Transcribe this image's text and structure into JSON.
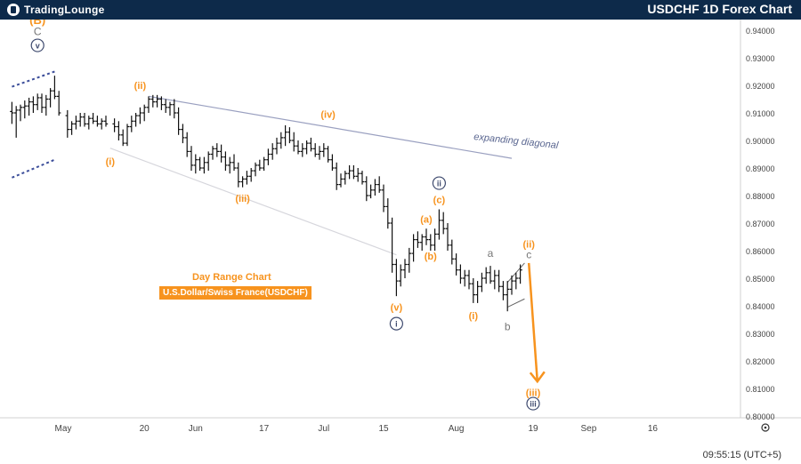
{
  "header": {
    "logo_text": "TradingLounge",
    "title": "USDCHF 1D Forex Chart"
  },
  "annotations": {
    "range_title": "Day Range Chart",
    "pair_label": "U.S.Dollar/Swiss France(USDCHF)",
    "channel_label": "expanding diagonal"
  },
  "footer": {
    "time": "09:55:15 (UTC+5)"
  },
  "colors": {
    "orange": "#f7931e",
    "navy": "#0d2a4a",
    "channel": "#9aa0c0",
    "blue_dash": "#3c4e9a",
    "gray": "#888888"
  },
  "chart_data": {
    "type": "ohlc",
    "title": "USDCHF 1D Forex Chart",
    "y_ticks": [
      "0.94000",
      "0.93000",
      "0.92000",
      "0.91000",
      "0.90000",
      "0.89000",
      "0.88000",
      "0.87000",
      "0.86000",
      "0.85000",
      "0.84000",
      "0.83000",
      "0.82000",
      "0.81000",
      "0.80000"
    ],
    "x_ticks": [
      {
        "label": "May",
        "day": 0
      },
      {
        "label": "20",
        "day": 19
      },
      {
        "label": "Jun",
        "day": 31
      },
      {
        "label": "17",
        "day": 47
      },
      {
        "label": "Jul",
        "day": 61
      },
      {
        "label": "15",
        "day": 75
      },
      {
        "label": "Aug",
        "day": 92
      },
      {
        "label": "19",
        "day": 110
      },
      {
        "label": "Sep",
        "day": 123
      },
      {
        "label": "16",
        "day": 138
      }
    ],
    "ylim": [
      0.8,
      0.945
    ],
    "bars": [
      {
        "d": -12,
        "o": 0.9105,
        "h": 0.914,
        "l": 0.906,
        "c": 0.91
      },
      {
        "d": -11,
        "o": 0.91,
        "h": 0.9125,
        "l": 0.901,
        "c": 0.911
      },
      {
        "d": -10,
        "o": 0.911,
        "h": 0.913,
        "l": 0.907,
        "c": 0.912
      },
      {
        "d": -9,
        "o": 0.912,
        "h": 0.9145,
        "l": 0.908,
        "c": 0.9125
      },
      {
        "d": -8,
        "o": 0.9125,
        "h": 0.9155,
        "l": 0.909,
        "c": 0.914
      },
      {
        "d": -7,
        "o": 0.914,
        "h": 0.916,
        "l": 0.91,
        "c": 0.913
      },
      {
        "d": -6,
        "o": 0.913,
        "h": 0.917,
        "l": 0.911,
        "c": 0.9155
      },
      {
        "d": -5,
        "o": 0.9155,
        "h": 0.917,
        "l": 0.91,
        "c": 0.912
      },
      {
        "d": -4,
        "o": 0.912,
        "h": 0.9165,
        "l": 0.909,
        "c": 0.915
      },
      {
        "d": -3,
        "o": 0.915,
        "h": 0.919,
        "l": 0.912,
        "c": 0.918
      },
      {
        "d": -2,
        "o": 0.918,
        "h": 0.9235,
        "l": 0.915,
        "c": 0.916
      },
      {
        "d": -1,
        "o": 0.916,
        "h": 0.918,
        "l": 0.909,
        "c": 0.91
      },
      {
        "d": 1,
        "o": 0.909,
        "h": 0.911,
        "l": 0.901,
        "c": 0.904
      },
      {
        "d": 2,
        "o": 0.904,
        "h": 0.907,
        "l": 0.902,
        "c": 0.906
      },
      {
        "d": 3,
        "o": 0.906,
        "h": 0.909,
        "l": 0.904,
        "c": 0.907
      },
      {
        "d": 4,
        "o": 0.907,
        "h": 0.91,
        "l": 0.905,
        "c": 0.9085
      },
      {
        "d": 5,
        "o": 0.9085,
        "h": 0.91,
        "l": 0.905,
        "c": 0.906
      },
      {
        "d": 6,
        "o": 0.906,
        "h": 0.909,
        "l": 0.904,
        "c": 0.908
      },
      {
        "d": 7,
        "o": 0.908,
        "h": 0.91,
        "l": 0.906,
        "c": 0.907
      },
      {
        "d": 8,
        "o": 0.907,
        "h": 0.909,
        "l": 0.905,
        "c": 0.906
      },
      {
        "d": 9,
        "o": 0.906,
        "h": 0.908,
        "l": 0.904,
        "c": 0.907
      },
      {
        "d": 10,
        "o": 0.907,
        "h": 0.909,
        "l": 0.905,
        "c": 0.906
      },
      {
        "d": 12,
        "o": 0.906,
        "h": 0.908,
        "l": 0.903,
        "c": 0.905
      },
      {
        "d": 13,
        "o": 0.905,
        "h": 0.907,
        "l": 0.9,
        "c": 0.902
      },
      {
        "d": 14,
        "o": 0.902,
        "h": 0.904,
        "l": 0.898,
        "c": 0.899
      },
      {
        "d": 15,
        "o": 0.899,
        "h": 0.906,
        "l": 0.898,
        "c": 0.905
      },
      {
        "d": 16,
        "o": 0.905,
        "h": 0.909,
        "l": 0.903,
        "c": 0.907
      },
      {
        "d": 17,
        "o": 0.907,
        "h": 0.91,
        "l": 0.905,
        "c": 0.909
      },
      {
        "d": 18,
        "o": 0.909,
        "h": 0.912,
        "l": 0.906,
        "c": 0.91
      },
      {
        "d": 19,
        "o": 0.91,
        "h": 0.913,
        "l": 0.907,
        "c": 0.912
      },
      {
        "d": 20,
        "o": 0.912,
        "h": 0.916,
        "l": 0.91,
        "c": 0.915
      },
      {
        "d": 21,
        "o": 0.915,
        "h": 0.9165,
        "l": 0.912,
        "c": 0.914
      },
      {
        "d": 22,
        "o": 0.914,
        "h": 0.9165,
        "l": 0.912,
        "c": 0.915
      },
      {
        "d": 23,
        "o": 0.915,
        "h": 0.916,
        "l": 0.911,
        "c": 0.913
      },
      {
        "d": 24,
        "o": 0.913,
        "h": 0.915,
        "l": 0.91,
        "c": 0.912
      },
      {
        "d": 25,
        "o": 0.912,
        "h": 0.914,
        "l": 0.909,
        "c": 0.913
      },
      {
        "d": 26,
        "o": 0.913,
        "h": 0.915,
        "l": 0.908,
        "c": 0.91
      },
      {
        "d": 27,
        "o": 0.91,
        "h": 0.912,
        "l": 0.902,
        "c": 0.904
      },
      {
        "d": 28,
        "o": 0.904,
        "h": 0.906,
        "l": 0.899,
        "c": 0.901
      },
      {
        "d": 29,
        "o": 0.901,
        "h": 0.903,
        "l": 0.894,
        "c": 0.896
      },
      {
        "d": 30,
        "o": 0.896,
        "h": 0.898,
        "l": 0.889,
        "c": 0.891
      },
      {
        "d": 31,
        "o": 0.891,
        "h": 0.895,
        "l": 0.888,
        "c": 0.893
      },
      {
        "d": 32,
        "o": 0.893,
        "h": 0.894,
        "l": 0.889,
        "c": 0.89
      },
      {
        "d": 33,
        "o": 0.89,
        "h": 0.894,
        "l": 0.888,
        "c": 0.892
      },
      {
        "d": 34,
        "o": 0.892,
        "h": 0.896,
        "l": 0.889,
        "c": 0.895
      },
      {
        "d": 35,
        "o": 0.895,
        "h": 0.898,
        "l": 0.893,
        "c": 0.897
      },
      {
        "d": 36,
        "o": 0.897,
        "h": 0.899,
        "l": 0.894,
        "c": 0.896
      },
      {
        "d": 37,
        "o": 0.896,
        "h": 0.8985,
        "l": 0.892,
        "c": 0.894
      },
      {
        "d": 38,
        "o": 0.894,
        "h": 0.896,
        "l": 0.889,
        "c": 0.891
      },
      {
        "d": 39,
        "o": 0.891,
        "h": 0.894,
        "l": 0.888,
        "c": 0.892
      },
      {
        "d": 40,
        "o": 0.892,
        "h": 0.895,
        "l": 0.889,
        "c": 0.89
      },
      {
        "d": 41,
        "o": 0.89,
        "h": 0.892,
        "l": 0.883,
        "c": 0.885
      },
      {
        "d": 42,
        "o": 0.885,
        "h": 0.887,
        "l": 0.883,
        "c": 0.886
      },
      {
        "d": 43,
        "o": 0.886,
        "h": 0.889,
        "l": 0.884,
        "c": 0.887
      },
      {
        "d": 44,
        "o": 0.887,
        "h": 0.89,
        "l": 0.885,
        "c": 0.889
      },
      {
        "d": 45,
        "o": 0.889,
        "h": 0.892,
        "l": 0.887,
        "c": 0.891
      },
      {
        "d": 46,
        "o": 0.891,
        "h": 0.893,
        "l": 0.889,
        "c": 0.89
      },
      {
        "d": 47,
        "o": 0.89,
        "h": 0.894,
        "l": 0.889,
        "c": 0.893
      },
      {
        "d": 48,
        "o": 0.893,
        "h": 0.897,
        "l": 0.891,
        "c": 0.895
      },
      {
        "d": 49,
        "o": 0.895,
        "h": 0.899,
        "l": 0.893,
        "c": 0.897
      },
      {
        "d": 50,
        "o": 0.897,
        "h": 0.901,
        "l": 0.895,
        "c": 0.899
      },
      {
        "d": 51,
        "o": 0.899,
        "h": 0.903,
        "l": 0.897,
        "c": 0.901
      },
      {
        "d": 52,
        "o": 0.901,
        "h": 0.9055,
        "l": 0.898,
        "c": 0.903
      },
      {
        "d": 53,
        "o": 0.903,
        "h": 0.9048,
        "l": 0.899,
        "c": 0.9
      },
      {
        "d": 54,
        "o": 0.9,
        "h": 0.903,
        "l": 0.896,
        "c": 0.898
      },
      {
        "d": 55,
        "o": 0.898,
        "h": 0.9,
        "l": 0.895,
        "c": 0.896
      },
      {
        "d": 56,
        "o": 0.896,
        "h": 0.899,
        "l": 0.894,
        "c": 0.897
      },
      {
        "d": 57,
        "o": 0.897,
        "h": 0.9,
        "l": 0.895,
        "c": 0.899
      },
      {
        "d": 58,
        "o": 0.899,
        "h": 0.901,
        "l": 0.896,
        "c": 0.897
      },
      {
        "d": 59,
        "o": 0.897,
        "h": 0.899,
        "l": 0.894,
        "c": 0.895
      },
      {
        "d": 60,
        "o": 0.895,
        "h": 0.898,
        "l": 0.893,
        "c": 0.896
      },
      {
        "d": 61,
        "o": 0.896,
        "h": 0.899,
        "l": 0.894,
        "c": 0.897
      },
      {
        "d": 62,
        "o": 0.897,
        "h": 0.898,
        "l": 0.892,
        "c": 0.893
      },
      {
        "d": 63,
        "o": 0.893,
        "h": 0.895,
        "l": 0.889,
        "c": 0.89
      },
      {
        "d": 64,
        "o": 0.89,
        "h": 0.892,
        "l": 0.882,
        "c": 0.884
      },
      {
        "d": 65,
        "o": 0.884,
        "h": 0.888,
        "l": 0.883,
        "c": 0.886
      },
      {
        "d": 66,
        "o": 0.886,
        "h": 0.889,
        "l": 0.884,
        "c": 0.888
      },
      {
        "d": 67,
        "o": 0.888,
        "h": 0.891,
        "l": 0.886,
        "c": 0.889
      },
      {
        "d": 68,
        "o": 0.889,
        "h": 0.891,
        "l": 0.886,
        "c": 0.887
      },
      {
        "d": 69,
        "o": 0.887,
        "h": 0.89,
        "l": 0.885,
        "c": 0.888
      },
      {
        "d": 70,
        "o": 0.888,
        "h": 0.889,
        "l": 0.884,
        "c": 0.885
      },
      {
        "d": 71,
        "o": 0.885,
        "h": 0.887,
        "l": 0.878,
        "c": 0.88
      },
      {
        "d": 72,
        "o": 0.88,
        "h": 0.884,
        "l": 0.879,
        "c": 0.882
      },
      {
        "d": 73,
        "o": 0.882,
        "h": 0.886,
        "l": 0.88,
        "c": 0.884
      },
      {
        "d": 74,
        "o": 0.884,
        "h": 0.887,
        "l": 0.881,
        "c": 0.882
      },
      {
        "d": 75,
        "o": 0.882,
        "h": 0.884,
        "l": 0.874,
        "c": 0.876
      },
      {
        "d": 76,
        "o": 0.876,
        "h": 0.879,
        "l": 0.868,
        "c": 0.87
      },
      {
        "d": 77,
        "o": 0.87,
        "h": 0.872,
        "l": 0.852,
        "c": 0.855
      },
      {
        "d": 78,
        "o": 0.855,
        "h": 0.857,
        "l": 0.8435,
        "c": 0.849
      },
      {
        "d": 79,
        "o": 0.849,
        "h": 0.855,
        "l": 0.847,
        "c": 0.853
      },
      {
        "d": 80,
        "o": 0.853,
        "h": 0.857,
        "l": 0.85,
        "c": 0.855
      },
      {
        "d": 81,
        "o": 0.855,
        "h": 0.861,
        "l": 0.852,
        "c": 0.859
      },
      {
        "d": 82,
        "o": 0.859,
        "h": 0.866,
        "l": 0.856,
        "c": 0.864
      },
      {
        "d": 83,
        "o": 0.864,
        "h": 0.867,
        "l": 0.861,
        "c": 0.863
      },
      {
        "d": 84,
        "o": 0.863,
        "h": 0.866,
        "l": 0.86,
        "c": 0.865
      },
      {
        "d": 85,
        "o": 0.865,
        "h": 0.868,
        "l": 0.862,
        "c": 0.864
      },
      {
        "d": 86,
        "o": 0.864,
        "h": 0.866,
        "l": 0.86,
        "c": 0.862
      },
      {
        "d": 87,
        "o": 0.862,
        "h": 0.868,
        "l": 0.86,
        "c": 0.866
      },
      {
        "d": 88,
        "o": 0.866,
        "h": 0.875,
        "l": 0.864,
        "c": 0.871
      },
      {
        "d": 89,
        "o": 0.871,
        "h": 0.874,
        "l": 0.866,
        "c": 0.868
      },
      {
        "d": 90,
        "o": 0.868,
        "h": 0.87,
        "l": 0.86,
        "c": 0.862
      },
      {
        "d": 91,
        "o": 0.862,
        "h": 0.864,
        "l": 0.855,
        "c": 0.857
      },
      {
        "d": 92,
        "o": 0.857,
        "h": 0.859,
        "l": 0.851,
        "c": 0.853
      },
      {
        "d": 93,
        "o": 0.853,
        "h": 0.855,
        "l": 0.848,
        "c": 0.85
      },
      {
        "d": 94,
        "o": 0.85,
        "h": 0.853,
        "l": 0.847,
        "c": 0.851
      },
      {
        "d": 95,
        "o": 0.851,
        "h": 0.853,
        "l": 0.846,
        "c": 0.848
      },
      {
        "d": 96,
        "o": 0.848,
        "h": 0.85,
        "l": 0.841,
        "c": 0.844
      },
      {
        "d": 97,
        "o": 0.844,
        "h": 0.849,
        "l": 0.841,
        "c": 0.847
      },
      {
        "d": 98,
        "o": 0.847,
        "h": 0.852,
        "l": 0.845,
        "c": 0.85
      },
      {
        "d": 99,
        "o": 0.85,
        "h": 0.854,
        "l": 0.848,
        "c": 0.852
      },
      {
        "d": 100,
        "o": 0.852,
        "h": 0.8545,
        "l": 0.848,
        "c": 0.849
      },
      {
        "d": 101,
        "o": 0.849,
        "h": 0.853,
        "l": 0.846,
        "c": 0.851
      },
      {
        "d": 102,
        "o": 0.851,
        "h": 0.853,
        "l": 0.845,
        "c": 0.847
      },
      {
        "d": 103,
        "o": 0.847,
        "h": 0.849,
        "l": 0.842,
        "c": 0.844
      },
      {
        "d": 104,
        "o": 0.844,
        "h": 0.849,
        "l": 0.838,
        "c": 0.846
      },
      {
        "d": 105,
        "o": 0.846,
        "h": 0.851,
        "l": 0.844,
        "c": 0.849
      },
      {
        "d": 106,
        "o": 0.849,
        "h": 0.852,
        "l": 0.846,
        "c": 0.85
      },
      {
        "d": 107,
        "o": 0.85,
        "h": 0.855,
        "l": 0.848,
        "c": 0.853
      }
    ],
    "wave_labels": [
      {
        "text": "(B)",
        "style": "orange-bold",
        "d": -6,
        "price": 0.9435
      },
      {
        "text": "C",
        "style": "gray",
        "d": -6,
        "price": 0.9395
      },
      {
        "text": "v",
        "style": "circle-navy",
        "d": -6,
        "price": 0.9345
      },
      {
        "text": "(ii)",
        "style": "orange",
        "d": 18,
        "price": 0.92
      },
      {
        "text": "(i)",
        "style": "orange",
        "d": 11,
        "price": 0.8925
      },
      {
        "text": "(iii)",
        "style": "orange",
        "d": 42,
        "price": 0.879
      },
      {
        "text": "(iv)",
        "style": "orange",
        "d": 62,
        "price": 0.9095
      },
      {
        "text": "(v)",
        "style": "orange",
        "d": 78,
        "price": 0.8395
      },
      {
        "text": "i",
        "style": "circle-navy",
        "d": 78,
        "price": 0.8335
      },
      {
        "text": "(a)",
        "style": "orange",
        "d": 85,
        "price": 0.8715
      },
      {
        "text": "(b)",
        "style": "orange",
        "d": 86,
        "price": 0.858
      },
      {
        "text": "(c)",
        "style": "orange",
        "d": 88,
        "price": 0.8785
      },
      {
        "text": "ii",
        "style": "circle-navy",
        "d": 88,
        "price": 0.8845
      },
      {
        "text": "(i)",
        "style": "orange",
        "d": 96,
        "price": 0.8365
      },
      {
        "text": "a",
        "style": "gray",
        "d": 100,
        "price": 0.859
      },
      {
        "text": "b",
        "style": "gray",
        "d": 104,
        "price": 0.8325
      },
      {
        "text": "(ii)",
        "style": "orange",
        "d": 109,
        "price": 0.8625
      },
      {
        "text": "c",
        "style": "gray",
        "d": 109,
        "price": 0.8585
      },
      {
        "text": "(iii)",
        "style": "orange",
        "d": 110,
        "price": 0.8085
      },
      {
        "text": "iii",
        "style": "circle-navy",
        "d": 110,
        "price": 0.8045
      }
    ],
    "lines": [
      {
        "type": "blue-dash",
        "from": {
          "d": -12,
          "price": 0.9195
        },
        "to": {
          "d": -2,
          "price": 0.925
        }
      },
      {
        "type": "blue-dash",
        "from": {
          "d": -12,
          "price": 0.8865
        },
        "to": {
          "d": -2,
          "price": 0.893
        }
      },
      {
        "type": "channel-upper",
        "from": {
          "d": 20,
          "price": 0.916
        },
        "to": {
          "d": 105,
          "price": 0.8935
        }
      },
      {
        "type": "channel-lower",
        "from": {
          "d": 11,
          "price": 0.8972
        },
        "to": {
          "d": 78,
          "price": 0.8585
        }
      },
      {
        "type": "wedge",
        "from": {
          "d": 104,
          "price": 0.8485
        },
        "to": {
          "d": 108,
          "price": 0.8555
        }
      },
      {
        "type": "wedge",
        "from": {
          "d": 104,
          "price": 0.8395
        },
        "to": {
          "d": 108,
          "price": 0.8425
        }
      }
    ],
    "projection": {
      "from": {
        "d": 109,
        "price": 0.8555
      },
      "to": {
        "d": 111,
        "price": 0.8125
      }
    }
  }
}
